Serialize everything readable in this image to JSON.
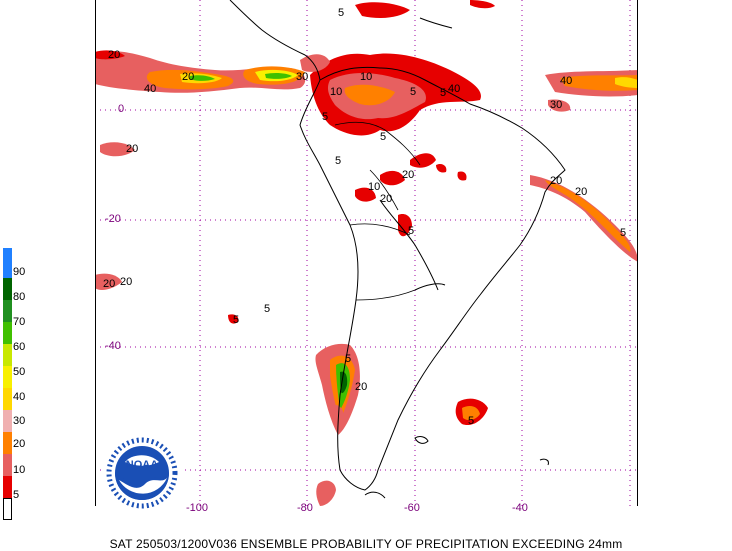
{
  "map": {
    "caption": "SAT 250503/1200V036  ENSEMBLE PROBABILITY OF PRECIPITATION EXCEEDING 24mm",
    "lon_labels": [
      "-100",
      "-80",
      "-60",
      "-40"
    ],
    "lat_labels": [
      "0",
      "-20",
      "-40"
    ],
    "legend": [
      {
        "label": "",
        "color": "#ffffff"
      },
      {
        "label": "5",
        "color": "#e60000"
      },
      {
        "label": "10",
        "color": "#e76060"
      },
      {
        "label": "20",
        "color": "#ff8000"
      },
      {
        "label": "30",
        "color": "#f0b0b0"
      },
      {
        "label": "40",
        "color": "#ffd800"
      },
      {
        "label": "50",
        "color": "#f8f000"
      },
      {
        "label": "60",
        "color": "#c8e800"
      },
      {
        "label": "70",
        "color": "#40c000"
      },
      {
        "label": "80",
        "color": "#209020"
      },
      {
        "label": "90",
        "color": "#006400"
      },
      {
        "label": "",
        "color": "#2080ff"
      }
    ],
    "logo_text": "NOAA",
    "contour_labels": [
      "5",
      "5",
      "5",
      "20",
      "10",
      "40",
      "20",
      "30",
      "40",
      "10",
      "5",
      "5",
      "5",
      "20",
      "10",
      "20",
      "40",
      "30",
      "20",
      "5",
      "5",
      "5",
      "20",
      "20",
      "5",
      "20",
      "20",
      "5",
      "20",
      "5"
    ]
  }
}
